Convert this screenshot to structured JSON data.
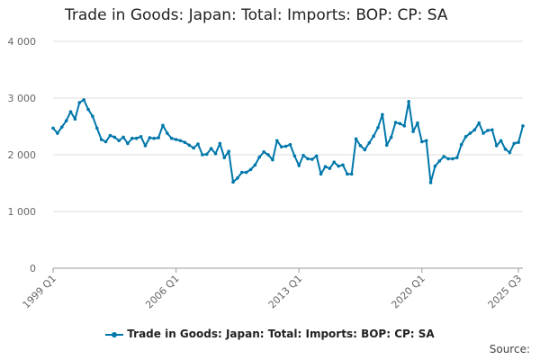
{
  "chart_data": {
    "type": "line",
    "title": "Trade in Goods: Japan: Total: Imports: BOP: CP: SA",
    "xlabel": "",
    "ylabel": "",
    "ylim": [
      0,
      4000
    ],
    "yticks": [
      0,
      1000,
      2000,
      3000,
      4000
    ],
    "ytick_labels": [
      "0",
      "1 000",
      "2 000",
      "3 000",
      "4 000"
    ],
    "xtick_labels": [
      "1999 Q1",
      "2006 Q1",
      "2013 Q1",
      "2020 Q1",
      "2025 Q3"
    ],
    "x_start": "1999 Q1",
    "x_end": "2025 Q3",
    "grid": true,
    "legend_position": "bottom",
    "color": "#0077aa",
    "series": [
      {
        "name": "Trade in Goods: Japan: Total: Imports: BOP: CP: SA",
        "values": [
          2470,
          2380,
          2490,
          2600,
          2760,
          2630,
          2920,
          2970,
          2800,
          2680,
          2470,
          2270,
          2230,
          2340,
          2310,
          2250,
          2310,
          2200,
          2290,
          2290,
          2320,
          2160,
          2300,
          2290,
          2300,
          2520,
          2380,
          2290,
          2270,
          2250,
          2220,
          2170,
          2120,
          2190,
          2000,
          2010,
          2110,
          2020,
          2200,
          1950,
          2060,
          1520,
          1590,
          1690,
          1690,
          1740,
          1820,
          1960,
          2050,
          2000,
          1910,
          2250,
          2140,
          2150,
          2180,
          1980,
          1810,
          1990,
          1930,
          1920,
          1980,
          1660,
          1790,
          1760,
          1870,
          1800,
          1820,
          1660,
          1660,
          2280,
          2160,
          2090,
          2210,
          2330,
          2480,
          2710,
          2170,
          2310,
          2570,
          2550,
          2510,
          2940,
          2410,
          2560,
          2230,
          2250,
          1510,
          1800,
          1890,
          1970,
          1930,
          1930,
          1950,
          2180,
          2320,
          2380,
          2440,
          2560,
          2380,
          2430,
          2440,
          2160,
          2250,
          2100,
          2040,
          2200,
          2220,
          2510
        ]
      }
    ]
  },
  "legend": {
    "label": "Trade in Goods: Japan: Total: Imports: BOP: CP: SA"
  },
  "source_label": "Source:"
}
